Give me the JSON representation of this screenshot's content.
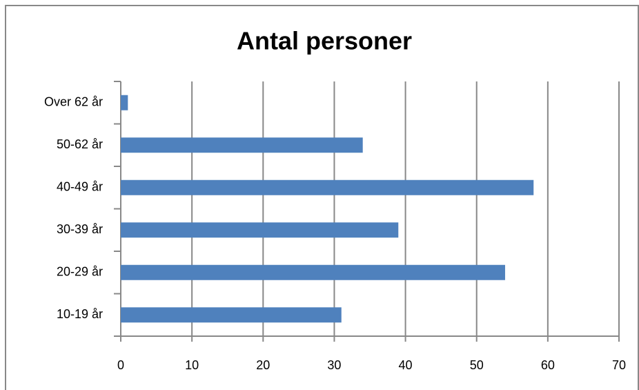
{
  "chart_data": {
    "type": "bar",
    "orientation": "horizontal",
    "title": "Antal personer",
    "categories": [
      "10-19 år",
      "20-29 år",
      "30-39 år",
      "40-49 år",
      "50-62 år",
      "Over 62 år"
    ],
    "values": [
      31,
      54,
      39,
      58,
      34,
      1
    ],
    "color": "#4f81bd",
    "xlim": [
      0,
      70
    ],
    "xticks": [
      0,
      10,
      20,
      30,
      40,
      50,
      60,
      70
    ],
    "grid": true
  }
}
